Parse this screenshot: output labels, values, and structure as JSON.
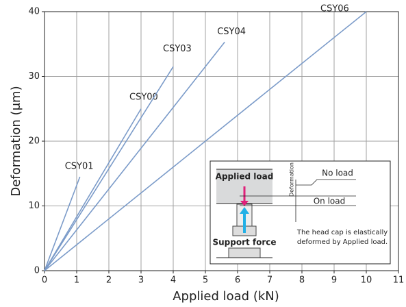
{
  "chart_data": {
    "type": "line",
    "x_label": "Applied load (kN)",
    "y_label": "Deformation (μm)",
    "xlim": [
      0,
      11
    ],
    "xticks": [
      0,
      1,
      2,
      3,
      4,
      5,
      6,
      7,
      8,
      9,
      10,
      11
    ],
    "ylim": [
      0,
      40
    ],
    "yticks": [
      0,
      10,
      20,
      30,
      40
    ],
    "grid": true,
    "series": [
      {
        "name": "CSY01",
        "color": "#7b9bc9",
        "x": [
          0,
          1.1
        ],
        "values": [
          0,
          14.5
        ]
      },
      {
        "name": "CSY00",
        "color": "#7b9bc9",
        "x": [
          0,
          3.0
        ],
        "values": [
          0,
          25
        ]
      },
      {
        "name": "CSY03",
        "color": "#7b9bc9",
        "x": [
          0,
          4.0
        ],
        "values": [
          0,
          31.5
        ]
      },
      {
        "name": "CSY04",
        "color": "#7b9bc9",
        "x": [
          0,
          5.6
        ],
        "values": [
          0,
          35.3
        ]
      },
      {
        "name": "CSY06",
        "color": "#7b9bc9",
        "x": [
          0,
          10
        ],
        "values": [
          0,
          40
        ]
      }
    ],
    "annotations": [
      "Applied load",
      "Deformation",
      "No load",
      "On load",
      "The head cap is elastically",
      "deformed by Applied load.",
      "Support force"
    ]
  }
}
